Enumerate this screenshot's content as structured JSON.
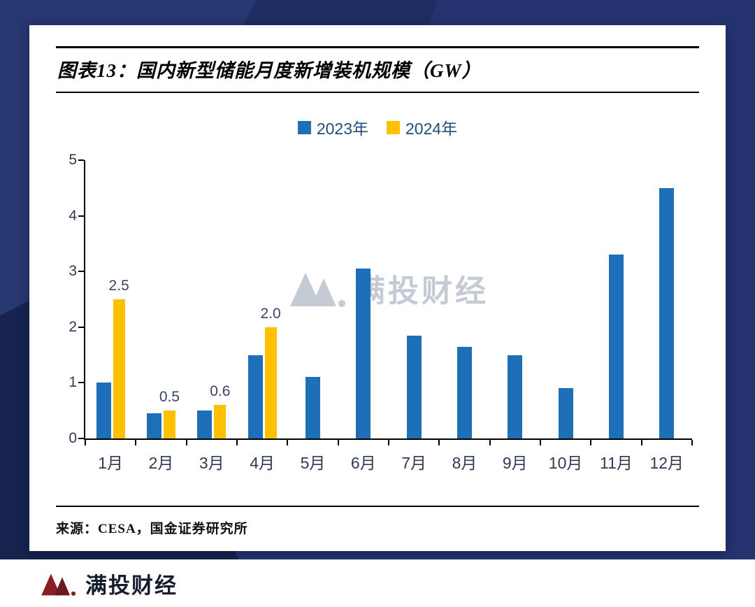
{
  "card": {
    "title": "图表13：国内新型储能月度新增装机规模（GW）",
    "source": "来源：CESA，国金证券研究所"
  },
  "watermark": {
    "text": "满投财经"
  },
  "footer": {
    "brand": "满投财经"
  },
  "chart_data": {
    "type": "bar",
    "title": "国内新型储能月度新增装机规模（GW）",
    "categories": [
      "1月",
      "2月",
      "3月",
      "4月",
      "5月",
      "6月",
      "7月",
      "8月",
      "9月",
      "10月",
      "11月",
      "12月"
    ],
    "series": [
      {
        "name": "2023年",
        "color": "#1d6fb8",
        "values": [
          1.0,
          0.45,
          0.5,
          1.5,
          1.1,
          3.05,
          1.85,
          1.65,
          1.5,
          0.9,
          3.3,
          4.5
        ]
      },
      {
        "name": "2024年",
        "color": "#ffc000",
        "values": [
          2.5,
          0.5,
          0.6,
          2.0,
          null,
          null,
          null,
          null,
          null,
          null,
          null,
          null
        ],
        "data_labels": [
          "2.5",
          "0.5",
          "0.6",
          "2.0"
        ]
      }
    ],
    "xlabel": "",
    "ylabel": "",
    "ylim": [
      0,
      5
    ],
    "yticks": [
      0,
      1,
      2,
      3,
      4,
      5
    ],
    "grid": false,
    "legend_position": "top"
  }
}
